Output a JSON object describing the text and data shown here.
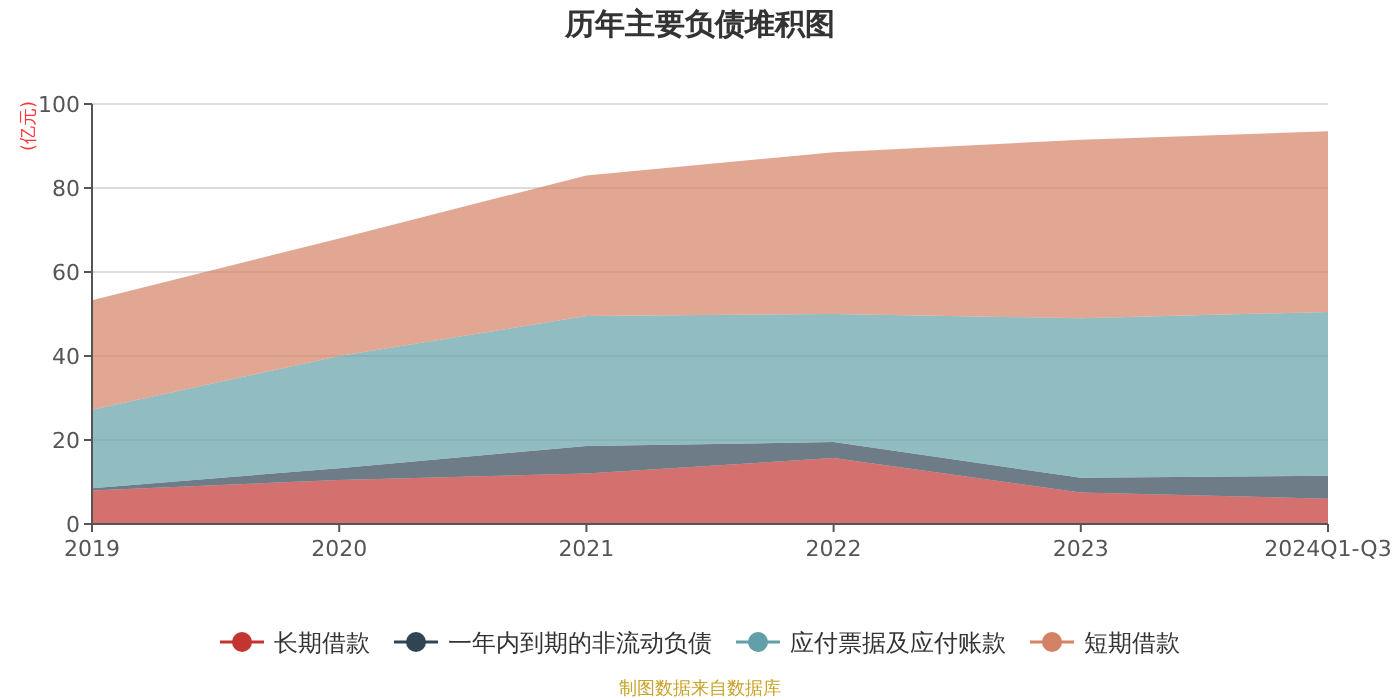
{
  "chart_data": {
    "type": "area",
    "stacked": true,
    "title": "历年主要负债堆积图",
    "ylabel": "(亿元)",
    "categories": [
      "2019",
      "2020",
      "2021",
      "2022",
      "2023",
      "2024Q1-Q3"
    ],
    "series": [
      {
        "name": "长期借款",
        "color": "#c23531",
        "values": [
          8,
          10.5,
          12,
          15.7,
          7.5,
          6
        ]
      },
      {
        "name": "一年内到期的非流动负债",
        "color": "#2f4554",
        "values": [
          0.5,
          2.8,
          6.6,
          3.8,
          3.5,
          5.5
        ]
      },
      {
        "name": "应付票据及应付账款",
        "color": "#61a0a8",
        "values": [
          18.7,
          26.7,
          30.9,
          30.5,
          38,
          39
        ]
      },
      {
        "name": "短期借款",
        "color": "#d48265",
        "values": [
          26.1,
          28,
          33.5,
          38.5,
          42.5,
          43
        ]
      }
    ],
    "ylim": [
      0,
      100
    ],
    "yticks": [
      0,
      20,
      40,
      60,
      80,
      100
    ],
    "grid": "y",
    "legend": "bottom",
    "annotations": [
      "制图数据来自数据库"
    ]
  }
}
